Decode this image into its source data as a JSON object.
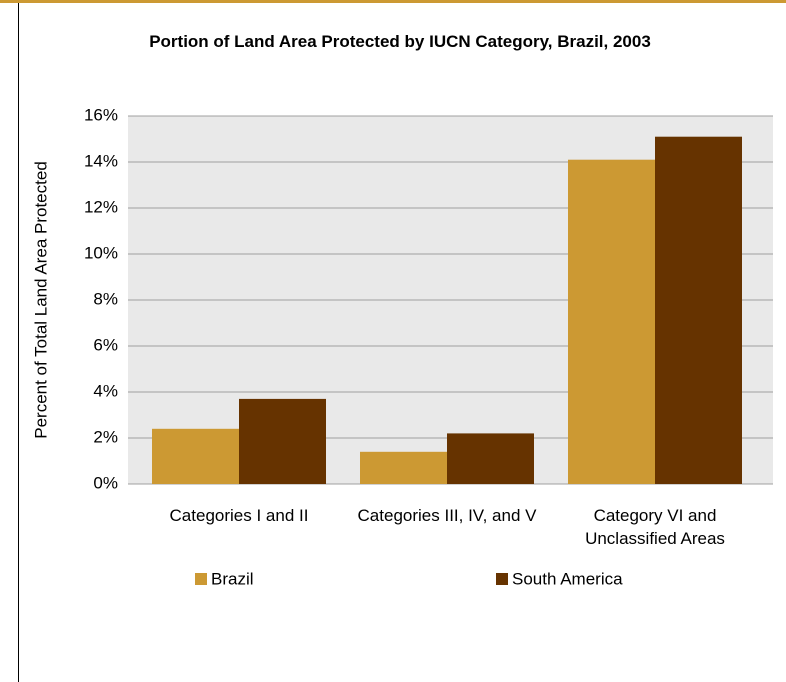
{
  "chart_data": {
    "type": "bar",
    "title": "Portion of Land Area Protected by IUCN Category, Brazil, 2003",
    "y_label": "Percent of Total Land Area Protected",
    "categories": [
      "Categories I and II",
      "Categories III, IV, and V",
      "Category VI and Unclassified Areas"
    ],
    "series": [
      {
        "name": "Brazil",
        "color": "#cc9933",
        "values": [
          2.4,
          1.4,
          14.1
        ]
      },
      {
        "name": "South America",
        "color": "#663300",
        "values": [
          3.7,
          2.2,
          15.1
        ]
      }
    ],
    "ylim": [
      0,
      16
    ],
    "yticks": [
      {
        "value": 0,
        "label": "0%"
      },
      {
        "value": 2,
        "label": "2%"
      },
      {
        "value": 4,
        "label": "4%"
      },
      {
        "value": 6,
        "label": "6%"
      },
      {
        "value": 8,
        "label": "8%"
      },
      {
        "value": 10,
        "label": "10%"
      },
      {
        "value": 12,
        "label": "12%"
      },
      {
        "value": 14,
        "label": "14%"
      },
      {
        "value": 16,
        "label": "16%"
      }
    ],
    "grid": true,
    "legend": "bottom"
  }
}
